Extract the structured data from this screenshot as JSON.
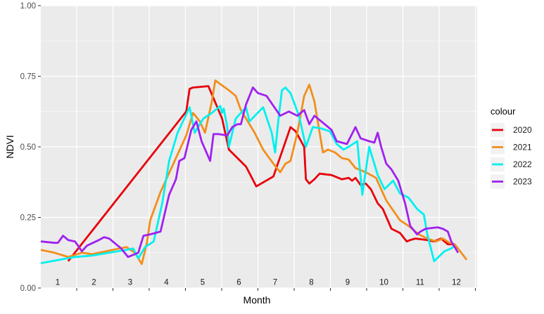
{
  "chart_data": {
    "type": "line",
    "xlabel": "Month",
    "ylabel": "NDVI",
    "xlim": [
      0,
      12.45
    ],
    "ylim": [
      0,
      1
    ],
    "x_ticks": [
      "1",
      "2",
      "3",
      "4",
      "5",
      "6",
      "7",
      "8",
      "9",
      "10",
      "11",
      "12"
    ],
    "y_ticks": [
      "0.00",
      "0.25",
      "0.50",
      "0.75",
      "1.00"
    ],
    "grid": true,
    "legend": {
      "title": "colour",
      "placement": "right"
    },
    "series": [
      {
        "name": "2020",
        "color": "#E8000B",
        "points": [
          [
            0.8,
            0.095
          ],
          [
            4.25,
            0.625
          ],
          [
            4.35,
            0.705
          ],
          [
            4.45,
            0.71
          ],
          [
            4.9,
            0.715
          ],
          [
            5.3,
            0.6
          ],
          [
            5.5,
            0.49
          ],
          [
            6.0,
            0.43
          ],
          [
            6.3,
            0.36
          ],
          [
            6.8,
            0.395
          ],
          [
            7.3,
            0.57
          ],
          [
            7.45,
            0.555
          ],
          [
            7.7,
            0.5
          ],
          [
            7.75,
            0.385
          ],
          [
            7.85,
            0.37
          ],
          [
            8.0,
            0.385
          ],
          [
            8.15,
            0.405
          ],
          [
            8.5,
            0.4
          ],
          [
            8.8,
            0.385
          ],
          [
            9.0,
            0.39
          ],
          [
            9.1,
            0.38
          ],
          [
            9.2,
            0.39
          ],
          [
            9.35,
            0.365
          ],
          [
            9.5,
            0.37
          ],
          [
            9.65,
            0.35
          ],
          [
            9.85,
            0.3
          ],
          [
            10.0,
            0.28
          ],
          [
            10.25,
            0.21
          ],
          [
            10.5,
            0.195
          ],
          [
            10.7,
            0.165
          ],
          [
            10.8,
            0.17
          ],
          [
            10.95,
            0.175
          ],
          [
            11.3,
            0.17
          ],
          [
            11.5,
            0.165
          ],
          [
            11.7,
            0.175
          ],
          [
            11.9,
            0.155
          ],
          [
            12.05,
            0.155
          ],
          [
            12.2,
            0.14
          ]
        ]
      },
      {
        "name": "2021",
        "color": "#F28E1C",
        "points": [
          [
            0.0,
            0.135
          ],
          [
            0.4,
            0.125
          ],
          [
            0.8,
            0.11
          ],
          [
            1.2,
            0.125
          ],
          [
            1.5,
            0.12
          ],
          [
            2.5,
            0.145
          ],
          [
            2.75,
            0.125
          ],
          [
            2.95,
            0.085
          ],
          [
            3.1,
            0.16
          ],
          [
            3.2,
            0.24
          ],
          [
            3.5,
            0.34
          ],
          [
            4.25,
            0.54
          ],
          [
            4.45,
            0.62
          ],
          [
            4.65,
            0.59
          ],
          [
            4.8,
            0.55
          ],
          [
            5.0,
            0.66
          ],
          [
            5.1,
            0.735
          ],
          [
            5.5,
            0.7
          ],
          [
            5.7,
            0.68
          ],
          [
            5.85,
            0.63
          ],
          [
            6.0,
            0.6
          ],
          [
            6.25,
            0.55
          ],
          [
            6.5,
            0.49
          ],
          [
            6.8,
            0.44
          ],
          [
            7.0,
            0.41
          ],
          [
            7.15,
            0.44
          ],
          [
            7.3,
            0.45
          ],
          [
            7.5,
            0.55
          ],
          [
            7.7,
            0.68
          ],
          [
            7.85,
            0.72
          ],
          [
            8.0,
            0.66
          ],
          [
            8.25,
            0.48
          ],
          [
            8.4,
            0.49
          ],
          [
            8.6,
            0.48
          ],
          [
            8.8,
            0.46
          ],
          [
            9.0,
            0.455
          ],
          [
            9.2,
            0.425
          ],
          [
            9.5,
            0.41
          ],
          [
            9.8,
            0.39
          ],
          [
            10.1,
            0.31
          ],
          [
            10.5,
            0.24
          ],
          [
            10.75,
            0.22
          ],
          [
            11.05,
            0.19
          ],
          [
            11.3,
            0.175
          ],
          [
            11.55,
            0.165
          ],
          [
            11.75,
            0.175
          ],
          [
            11.95,
            0.16
          ],
          [
            12.1,
            0.155
          ],
          [
            12.45,
            0.1
          ]
        ]
      },
      {
        "name": "2022",
        "color": "#00F0F0",
        "points": [
          [
            0.0,
            0.088
          ],
          [
            1.0,
            0.11
          ],
          [
            1.5,
            0.115
          ],
          [
            2.0,
            0.125
          ],
          [
            2.5,
            0.135
          ],
          [
            2.7,
            0.14
          ],
          [
            2.85,
            0.105
          ],
          [
            3.05,
            0.145
          ],
          [
            3.3,
            0.165
          ],
          [
            3.55,
            0.3
          ],
          [
            3.75,
            0.45
          ],
          [
            4.0,
            0.55
          ],
          [
            4.35,
            0.64
          ],
          [
            4.5,
            0.55
          ],
          [
            4.75,
            0.6
          ],
          [
            5.0,
            0.62
          ],
          [
            5.25,
            0.645
          ],
          [
            5.3,
            0.62
          ],
          [
            5.35,
            0.635
          ],
          [
            5.45,
            0.57
          ],
          [
            5.5,
            0.5
          ],
          [
            5.7,
            0.6
          ],
          [
            6.0,
            0.64
          ],
          [
            6.1,
            0.59
          ],
          [
            6.5,
            0.64
          ],
          [
            6.75,
            0.55
          ],
          [
            6.85,
            0.48
          ],
          [
            6.95,
            0.6
          ],
          [
            7.05,
            0.7
          ],
          [
            7.15,
            0.71
          ],
          [
            7.3,
            0.69
          ],
          [
            7.55,
            0.61
          ],
          [
            7.75,
            0.5
          ],
          [
            7.95,
            0.57
          ],
          [
            8.2,
            0.565
          ],
          [
            8.45,
            0.555
          ],
          [
            8.65,
            0.51
          ],
          [
            8.85,
            0.49
          ],
          [
            9.0,
            0.5
          ],
          [
            9.25,
            0.52
          ],
          [
            9.4,
            0.33
          ],
          [
            9.6,
            0.5
          ],
          [
            9.85,
            0.4
          ],
          [
            10.05,
            0.35
          ],
          [
            10.3,
            0.38
          ],
          [
            10.5,
            0.335
          ],
          [
            10.75,
            0.32
          ],
          [
            11.0,
            0.28
          ],
          [
            11.2,
            0.26
          ],
          [
            11.3,
            0.19
          ],
          [
            11.5,
            0.095
          ],
          [
            11.8,
            0.13
          ],
          [
            12.0,
            0.14
          ],
          [
            12.1,
            0.15
          ]
        ]
      },
      {
        "name": "2023",
        "color": "#A020F0",
        "points": [
          [
            0.0,
            0.165
          ],
          [
            0.4,
            0.16
          ],
          [
            0.5,
            0.16
          ],
          [
            0.65,
            0.185
          ],
          [
            0.8,
            0.17
          ],
          [
            1.0,
            0.165
          ],
          [
            1.2,
            0.13
          ],
          [
            1.35,
            0.15
          ],
          [
            1.7,
            0.17
          ],
          [
            1.85,
            0.18
          ],
          [
            2.0,
            0.175
          ],
          [
            2.15,
            0.16
          ],
          [
            2.35,
            0.14
          ],
          [
            2.55,
            0.11
          ],
          [
            2.85,
            0.125
          ],
          [
            3.0,
            0.185
          ],
          [
            3.2,
            0.19
          ],
          [
            3.5,
            0.2
          ],
          [
            3.75,
            0.33
          ],
          [
            3.95,
            0.385
          ],
          [
            4.05,
            0.45
          ],
          [
            4.2,
            0.46
          ],
          [
            4.4,
            0.56
          ],
          [
            4.55,
            0.59
          ],
          [
            4.7,
            0.52
          ],
          [
            4.95,
            0.45
          ],
          [
            5.05,
            0.545
          ],
          [
            5.2,
            0.545
          ],
          [
            5.45,
            0.54
          ],
          [
            5.6,
            0.57
          ],
          [
            5.75,
            0.58
          ],
          [
            5.85,
            0.58
          ],
          [
            6.0,
            0.65
          ],
          [
            6.2,
            0.71
          ],
          [
            6.35,
            0.69
          ],
          [
            6.6,
            0.68
          ],
          [
            7.0,
            0.61
          ],
          [
            7.25,
            0.625
          ],
          [
            7.5,
            0.61
          ],
          [
            7.7,
            0.63
          ],
          [
            7.85,
            0.58
          ],
          [
            8.0,
            0.61
          ],
          [
            8.3,
            0.58
          ],
          [
            8.5,
            0.56
          ],
          [
            8.65,
            0.52
          ],
          [
            8.95,
            0.51
          ],
          [
            9.2,
            0.57
          ],
          [
            9.35,
            0.53
          ],
          [
            9.6,
            0.52
          ],
          [
            9.75,
            0.515
          ],
          [
            9.85,
            0.55
          ],
          [
            9.95,
            0.5
          ],
          [
            10.1,
            0.44
          ],
          [
            10.25,
            0.42
          ],
          [
            10.45,
            0.38
          ],
          [
            10.65,
            0.3
          ],
          [
            10.8,
            0.22
          ],
          [
            11.0,
            0.19
          ],
          [
            11.1,
            0.2
          ],
          [
            11.25,
            0.21
          ],
          [
            11.6,
            0.215
          ],
          [
            11.75,
            0.21
          ],
          [
            11.9,
            0.2
          ],
          [
            12.0,
            0.165
          ],
          [
            12.2,
            0.125
          ]
        ]
      }
    ]
  }
}
